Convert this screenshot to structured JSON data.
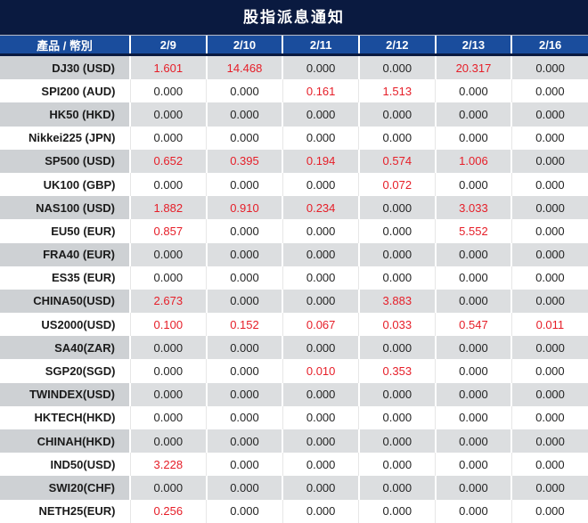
{
  "title": "股指派息通知",
  "colors": {
    "title_bar_bg": "#0a1a40",
    "header_bg": "#1a4d9d",
    "highlight_red": "#e61e28",
    "row_gray_label_bg": "#ced1d4",
    "row_gray_value_bg": "#dcdee0",
    "row_white_bg": "#ffffff"
  },
  "table": {
    "header": [
      "產品 / 幣別",
      "2/9",
      "2/10",
      "2/11",
      "2/12",
      "2/13",
      "2/16"
    ],
    "rows": [
      {
        "label": "DJ30 (USD)",
        "values": [
          "1.601",
          "14.468",
          "0.000",
          "0.000",
          "20.317",
          "0.000"
        ]
      },
      {
        "label": "SPI200 (AUD)",
        "values": [
          "0.000",
          "0.000",
          "0.161",
          "1.513",
          "0.000",
          "0.000"
        ]
      },
      {
        "label": "HK50 (HKD)",
        "values": [
          "0.000",
          "0.000",
          "0.000",
          "0.000",
          "0.000",
          "0.000"
        ]
      },
      {
        "label": "Nikkei225 (JPN)",
        "values": [
          "0.000",
          "0.000",
          "0.000",
          "0.000",
          "0.000",
          "0.000"
        ]
      },
      {
        "label": "SP500 (USD)",
        "values": [
          "0.652",
          "0.395",
          "0.194",
          "0.574",
          "1.006",
          "0.000"
        ]
      },
      {
        "label": "UK100 (GBP)",
        "values": [
          "0.000",
          "0.000",
          "0.000",
          "0.072",
          "0.000",
          "0.000"
        ]
      },
      {
        "label": "NAS100 (USD)",
        "values": [
          "1.882",
          "0.910",
          "0.234",
          "0.000",
          "3.033",
          "0.000"
        ]
      },
      {
        "label": "EU50 (EUR)",
        "values": [
          "0.857",
          "0.000",
          "0.000",
          "0.000",
          "5.552",
          "0.000"
        ]
      },
      {
        "label": "FRA40 (EUR)",
        "values": [
          "0.000",
          "0.000",
          "0.000",
          "0.000",
          "0.000",
          "0.000"
        ]
      },
      {
        "label": "ES35 (EUR)",
        "values": [
          "0.000",
          "0.000",
          "0.000",
          "0.000",
          "0.000",
          "0.000"
        ]
      },
      {
        "label": "CHINA50(USD)",
        "values": [
          "2.673",
          "0.000",
          "0.000",
          "3.883",
          "0.000",
          "0.000"
        ]
      },
      {
        "label": "US2000(USD)",
        "values": [
          "0.100",
          "0.152",
          "0.067",
          "0.033",
          "0.547",
          "0.011"
        ]
      },
      {
        "label": "SA40(ZAR)",
        "values": [
          "0.000",
          "0.000",
          "0.000",
          "0.000",
          "0.000",
          "0.000"
        ]
      },
      {
        "label": "SGP20(SGD)",
        "values": [
          "0.000",
          "0.000",
          "0.010",
          "0.353",
          "0.000",
          "0.000"
        ]
      },
      {
        "label": "TWINDEX(USD)",
        "values": [
          "0.000",
          "0.000",
          "0.000",
          "0.000",
          "0.000",
          "0.000"
        ]
      },
      {
        "label": "HKTECH(HKD)",
        "values": [
          "0.000",
          "0.000",
          "0.000",
          "0.000",
          "0.000",
          "0.000"
        ]
      },
      {
        "label": "CHINAH(HKD)",
        "values": [
          "0.000",
          "0.000",
          "0.000",
          "0.000",
          "0.000",
          "0.000"
        ]
      },
      {
        "label": "IND50(USD)",
        "values": [
          "3.228",
          "0.000",
          "0.000",
          "0.000",
          "0.000",
          "0.000"
        ]
      },
      {
        "label": "SWI20(CHF)",
        "values": [
          "0.000",
          "0.000",
          "0.000",
          "0.000",
          "0.000",
          "0.000"
        ]
      },
      {
        "label": "NETH25(EUR)",
        "values": [
          "0.256",
          "0.000",
          "0.000",
          "0.000",
          "0.000",
          "0.000"
        ]
      }
    ]
  }
}
